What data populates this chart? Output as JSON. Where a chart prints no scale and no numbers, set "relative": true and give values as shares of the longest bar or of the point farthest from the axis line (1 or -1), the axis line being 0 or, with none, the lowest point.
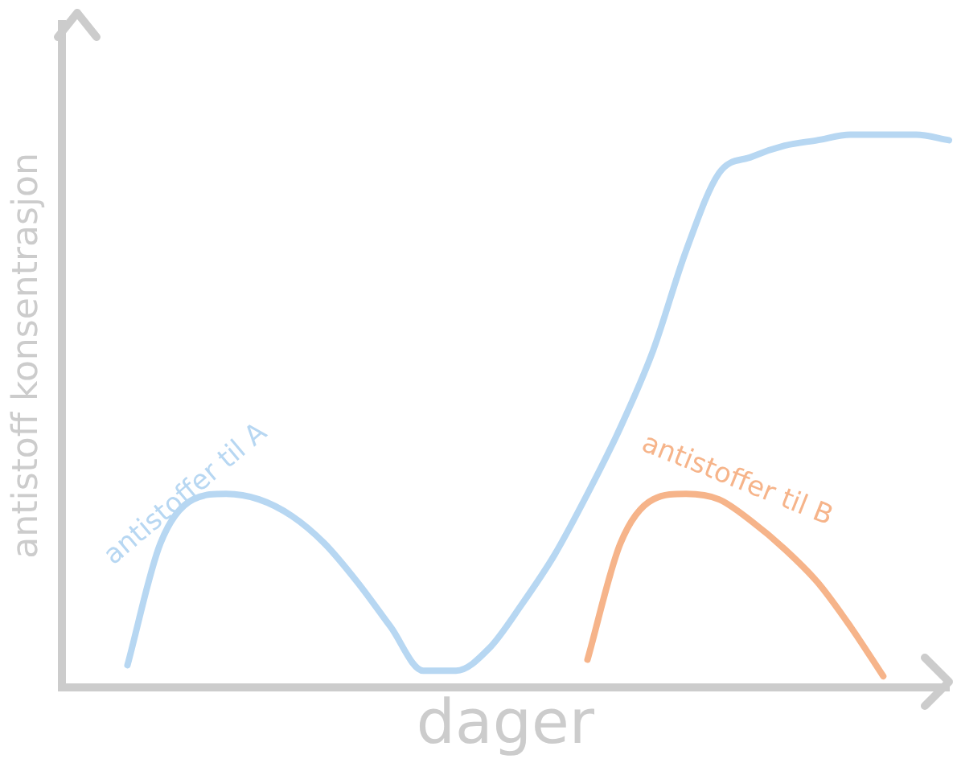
{
  "chart_data": {
    "type": "line",
    "xlabel": "dager",
    "ylabel": "antistoff konsentrasjon",
    "relative": true,
    "grid": false,
    "legend": false,
    "marker": "none",
    "line_style": "solid",
    "categories": [
      null,
      null,
      null,
      null,
      null,
      null,
      null,
      null,
      null,
      null,
      null,
      null,
      null,
      null,
      null,
      null,
      null,
      null,
      null,
      null,
      null,
      null,
      null,
      null,
      null,
      null,
      null,
      null
    ],
    "series": [
      {
        "name": "antistoffer til A",
        "color": "#b7d7f2",
        "values": [
          null,
          null,
          0.04,
          0.26,
          0.34,
          0.35,
          0.34,
          0.31,
          0.26,
          0.19,
          0.11,
          0.03,
          0.03,
          0.07,
          0.15,
          0.24,
          0.35,
          0.47,
          0.61,
          0.79,
          0.93,
          0.96,
          0.98,
          0.99,
          1.0,
          1.0,
          1.0,
          0.99
        ]
      },
      {
        "name": "antistoffer til B",
        "color": "#f6b48a",
        "values": [
          null,
          null,
          null,
          null,
          null,
          null,
          null,
          null,
          null,
          null,
          null,
          null,
          null,
          null,
          null,
          null,
          0.05,
          0.26,
          0.34,
          0.35,
          0.34,
          0.3,
          0.25,
          0.19,
          0.11,
          0.02,
          null,
          null
        ]
      }
    ]
  }
}
